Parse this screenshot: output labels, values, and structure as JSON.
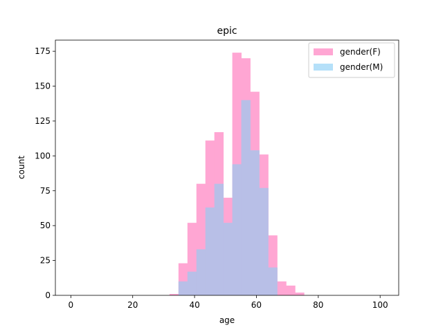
{
  "chart_data": {
    "type": "bar",
    "title": "epic",
    "xlabel": "age",
    "ylabel": "count",
    "xlim": [
      -5,
      106
    ],
    "ylim": [
      0,
      183
    ],
    "xticks": [
      0,
      20,
      40,
      60,
      80,
      100
    ],
    "yticks": [
      0,
      25,
      50,
      75,
      100,
      125,
      150,
      175
    ],
    "grid": false,
    "legend_position": "top-right",
    "bin_width": 2.9,
    "bin_starts": [
      31.9,
      34.8,
      37.7,
      40.6,
      43.5,
      46.4,
      49.3,
      52.2,
      55.1,
      58.0,
      60.9,
      63.8,
      66.7,
      69.6,
      72.5
    ],
    "series": [
      {
        "name": "gender(F)",
        "color": "#ffa6d3",
        "values": [
          1,
          23,
          52,
          80,
          111,
          117,
          70,
          174,
          170,
          146,
          101,
          43,
          10,
          7,
          2
        ]
      },
      {
        "name": "gender(M)",
        "color": "#b5e0f9",
        "values": [
          0,
          10,
          17,
          33,
          63,
          80,
          52,
          94,
          140,
          104,
          77,
          20,
          0,
          0,
          0
        ]
      }
    ],
    "overlap_color": "#b8bfe7"
  }
}
